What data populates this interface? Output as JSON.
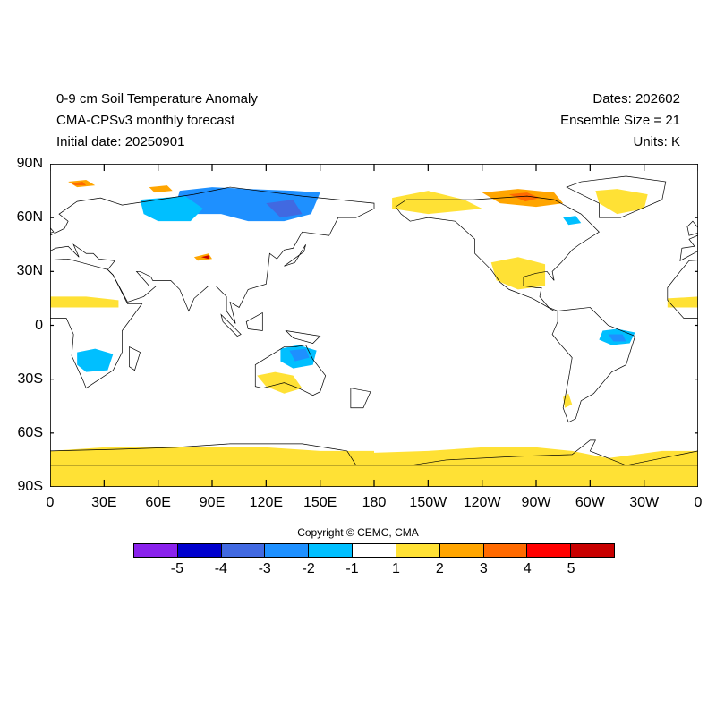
{
  "header": {
    "title": "0-9 cm Soil Temperature Anomaly",
    "model": "CMA-CPSv3 monthly forecast",
    "initial_date": "Initial date: 20250901",
    "dates": "Dates: 202602",
    "ensemble": "Ensemble Size = 21",
    "units": "Units: K"
  },
  "axes": {
    "x_ticks": [
      "0",
      "30E",
      "60E",
      "90E",
      "120E",
      "150E",
      "180",
      "150W",
      "120W",
      "90W",
      "60W",
      "30W",
      "0"
    ],
    "y_ticks": [
      "90N",
      "60N",
      "30N",
      "0",
      "30S",
      "60S",
      "90S"
    ]
  },
  "colorbar": {
    "copyright": "Copyright © CEMC, CMA",
    "colors": [
      "#8a22ec",
      "#0000cd",
      "#4169e1",
      "#1e90ff",
      "#00bfff",
      "#ffffff",
      "#ffe135",
      "#ffa500",
      "#ff6a00",
      "#ff0000",
      "#c80000"
    ],
    "labels": [
      "-5",
      "-4",
      "-3",
      "-2",
      "-1",
      "1",
      "2",
      "3",
      "4",
      "5"
    ]
  }
}
